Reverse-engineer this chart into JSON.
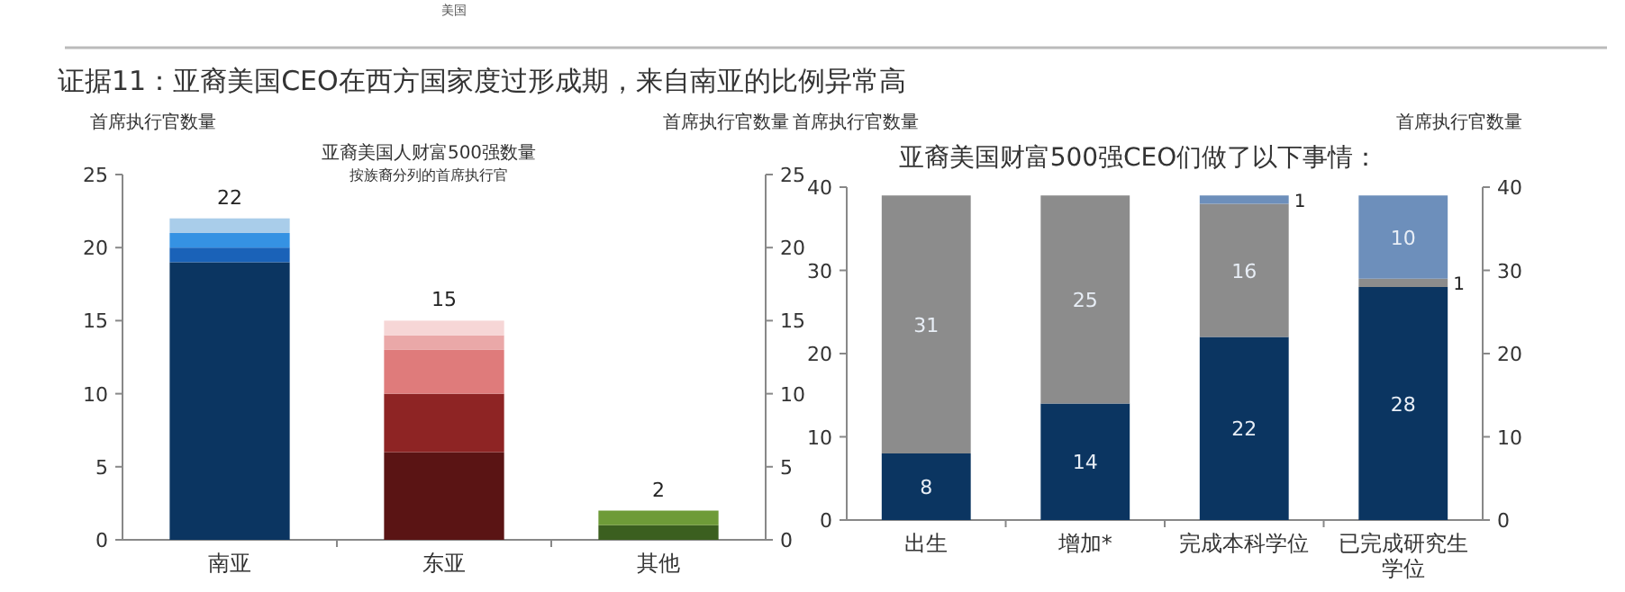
{
  "chart_data": [
    {
      "type": "bar",
      "stacked": true,
      "title": "亚裔美国人财富500强数量",
      "subtitle": "按族裔分列的首席执行官",
      "ylabel": "首席执行官数量",
      "y2label": "首席执行官数量",
      "annotations": [
        "美国",
        "证据11：亚裔美国CEO在西方国家度过形成期，来自南亚的比例异常高"
      ],
      "categories": [
        "南亚",
        "东亚",
        "其他"
      ],
      "series": [
        {
          "colors": [
            "#0b3561",
            "#5a1414",
            "#3b5f1f"
          ],
          "values": [
            19,
            6,
            1
          ]
        },
        {
          "colors": [
            "#1a62b8",
            "#8e2424",
            "#6e9b38"
          ],
          "values": [
            1,
            4,
            1
          ]
        },
        {
          "colors": [
            "#3592e3",
            "#df7b7b",
            null
          ],
          "values": [
            1,
            3,
            null
          ]
        },
        {
          "colors": [
            "#a9cdea",
            "#eaa8a8",
            null
          ],
          "values": [
            1,
            1,
            null
          ]
        },
        {
          "colors": [
            null,
            "#f6d6d6",
            null
          ],
          "values": [
            null,
            1,
            null
          ]
        }
      ],
      "totals": [
        "22",
        "15",
        "2"
      ],
      "ylim": [
        0,
        25
      ],
      "yticks": [
        0,
        5,
        10,
        15,
        20,
        25
      ],
      "y2lim": [
        0,
        25
      ],
      "y2ticks": [
        0,
        5,
        10,
        15,
        20,
        25
      ]
    },
    {
      "type": "bar",
      "stacked": true,
      "title": "亚裔美国财富500强CEO们做了以下事情：",
      "ylabel": "首席执行官数量",
      "y2label": "首席执行官数量",
      "categories": [
        "出生",
        "增加*",
        "完成本科学位",
        "已完成研究生学位"
      ],
      "series": [
        {
          "color": "#0b3561",
          "values": [
            8,
            14,
            22,
            28
          ]
        },
        {
          "color": "#8c8c8c",
          "values": [
            31,
            25,
            16,
            1
          ]
        },
        {
          "color": "#6d8fbb",
          "values": [
            null,
            null,
            1,
            10
          ]
        }
      ],
      "data_labels": true,
      "ylim": [
        0,
        40
      ],
      "yticks": [
        0,
        10,
        20,
        30,
        40
      ],
      "y2lim": [
        0,
        40
      ],
      "y2ticks": [
        0,
        10,
        20,
        30,
        40
      ]
    }
  ]
}
